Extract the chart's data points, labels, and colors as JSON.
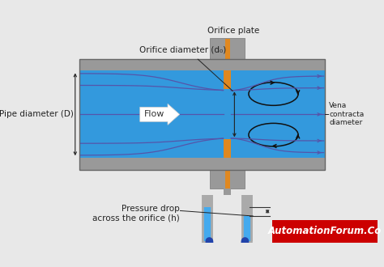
{
  "bg_color": "#e8e8e8",
  "pipe_color": "#999999",
  "fluid_color": "#3399dd",
  "orifice_plate_color": "#e08820",
  "flow_line_color": "#5555aa",
  "vortex_color": "#111111",
  "manometer_tube_color": "#aaaaaa",
  "manometer_fluid_light": "#44aaee",
  "manometer_fluid_dark": "#2244aa",
  "text_color": "#222222",
  "white": "#ffffff",
  "labels": {
    "orifice_plate": "Orifice plate",
    "orifice_diameter": "Orifice diameter (d₀)",
    "pipe_diameter": "Pipe diameter (D)",
    "flow": "Flow",
    "vena_contracta": "Vena\ncontracta\ndiameter",
    "pressure_drop": "Pressure drop\nacross the orifice (h)",
    "brand": "AutomationForum.Co"
  }
}
